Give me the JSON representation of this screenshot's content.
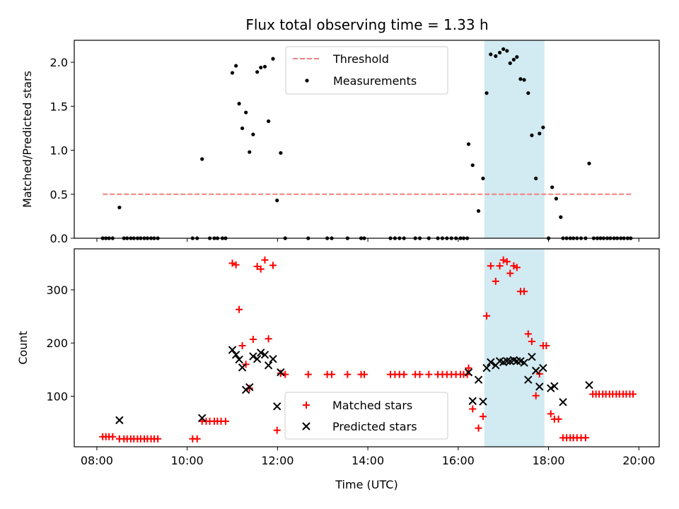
{
  "figure": {
    "title": "Flux total observing time = 1.33 h",
    "highlight_color": "#add8e6"
  },
  "chart_data": [
    {
      "type": "scatter",
      "panel": "top",
      "title": "Flux total observing time = 1.33 h",
      "xlabel": "",
      "ylabel": "Matched/Predicted stars",
      "x_unit": "hours (UTC)",
      "xlim": [
        7.5,
        20.45
      ],
      "ylim": [
        0,
        2.25
      ],
      "x_ticks": [
        8,
        10,
        12,
        14,
        16,
        18,
        20
      ],
      "y_ticks": [
        0.0,
        0.5,
        1.0,
        1.5,
        2.0
      ],
      "y_tick_labels": [
        "0.0",
        "0.5",
        "1.0",
        "1.5",
        "2.0"
      ],
      "grid": false,
      "legend_position": "upper-center",
      "highlight_span": [
        16.58,
        17.91
      ],
      "threshold": {
        "name": "Threshold",
        "value": 0.5,
        "x_range": [
          8.13,
          19.87
        ],
        "color": "#f08080",
        "style": "dashed"
      },
      "series": [
        {
          "name": "Measurements",
          "color": "#000000",
          "marker": "dot",
          "points": [
            [
              8.13,
              0
            ],
            [
              8.2,
              0
            ],
            [
              8.27,
              0
            ],
            [
              8.35,
              0
            ],
            [
              8.5,
              0.35
            ],
            [
              8.6,
              0
            ],
            [
              8.67,
              0
            ],
            [
              8.75,
              0
            ],
            [
              8.82,
              0
            ],
            [
              8.9,
              0
            ],
            [
              8.97,
              0
            ],
            [
              9.05,
              0
            ],
            [
              9.12,
              0
            ],
            [
              9.2,
              0
            ],
            [
              9.27,
              0
            ],
            [
              9.35,
              0
            ],
            [
              10.12,
              0
            ],
            [
              10.22,
              0
            ],
            [
              10.33,
              0.9
            ],
            [
              10.5,
              0
            ],
            [
              10.6,
              0
            ],
            [
              10.67,
              0
            ],
            [
              10.78,
              0
            ],
            [
              10.85,
              0
            ],
            [
              11.0,
              1.88
            ],
            [
              11.08,
              1.96
            ],
            [
              11.15,
              1.53
            ],
            [
              11.22,
              1.25
            ],
            [
              11.3,
              1.43
            ],
            [
              11.38,
              0.98
            ],
            [
              11.46,
              1.18
            ],
            [
              11.55,
              1.89
            ],
            [
              11.63,
              1.94
            ],
            [
              11.72,
              1.95
            ],
            [
              11.8,
              1.33
            ],
            [
              11.9,
              2.04
            ],
            [
              11.99,
              0.43
            ],
            [
              12.07,
              0.97
            ],
            [
              12.17,
              0
            ],
            [
              12.68,
              0
            ],
            [
              13.1,
              0
            ],
            [
              13.2,
              0
            ],
            [
              13.55,
              0
            ],
            [
              13.85,
              0
            ],
            [
              13.92,
              0
            ],
            [
              14.5,
              0
            ],
            [
              14.6,
              0
            ],
            [
              14.7,
              0
            ],
            [
              14.8,
              0
            ],
            [
              15.05,
              0
            ],
            [
              15.15,
              0
            ],
            [
              15.35,
              0
            ],
            [
              15.55,
              0
            ],
            [
              15.65,
              0
            ],
            [
              15.75,
              0
            ],
            [
              15.85,
              0
            ],
            [
              15.95,
              0
            ],
            [
              16.05,
              0
            ],
            [
              16.12,
              0
            ],
            [
              16.2,
              0
            ],
            [
              16.23,
              1.07
            ],
            [
              16.32,
              0.83
            ],
            [
              16.45,
              0.31
            ],
            [
              16.55,
              0.68
            ],
            [
              16.63,
              1.65
            ],
            [
              16.72,
              2.09
            ],
            [
              16.83,
              2.07
            ],
            [
              16.92,
              2.11
            ],
            [
              17.0,
              2.15
            ],
            [
              17.08,
              2.13
            ],
            [
              17.15,
              1.99
            ],
            [
              17.23,
              2.03
            ],
            [
              17.3,
              2.06
            ],
            [
              17.38,
              1.81
            ],
            [
              17.46,
              1.8
            ],
            [
              17.55,
              1.65
            ],
            [
              17.63,
              1.17
            ],
            [
              17.72,
              0.68
            ],
            [
              17.8,
              1.19
            ],
            [
              17.88,
              1.26
            ],
            [
              18.0,
              0
            ],
            [
              18.08,
              0.58
            ],
            [
              18.17,
              0.45
            ],
            [
              18.27,
              0.24
            ],
            [
              18.32,
              0
            ],
            [
              18.4,
              0
            ],
            [
              18.48,
              0
            ],
            [
              18.55,
              0
            ],
            [
              18.63,
              0
            ],
            [
              18.72,
              0
            ],
            [
              18.82,
              0
            ],
            [
              18.9,
              0.85
            ],
            [
              19.0,
              0
            ],
            [
              19.08,
              0
            ],
            [
              19.15,
              0
            ],
            [
              19.22,
              0
            ],
            [
              19.3,
              0
            ],
            [
              19.37,
              0
            ],
            [
              19.45,
              0
            ],
            [
              19.52,
              0
            ],
            [
              19.6,
              0
            ],
            [
              19.67,
              0
            ],
            [
              19.75,
              0
            ],
            [
              19.82,
              0
            ]
          ]
        }
      ]
    },
    {
      "type": "scatter",
      "panel": "bottom",
      "title": "",
      "xlabel": "Time (UTC)",
      "ylabel": "Count",
      "x_unit": "hours (UTC)",
      "xlim": [
        7.5,
        20.45
      ],
      "ylim": [
        5,
        377
      ],
      "x_ticks": [
        8,
        10,
        12,
        14,
        16,
        18,
        20
      ],
      "x_tick_labels": [
        "08:00",
        "10:00",
        "12:00",
        "14:00",
        "16:00",
        "18:00",
        "20:00"
      ],
      "y_ticks": [
        100,
        200,
        300
      ],
      "y_tick_labels": [
        "100",
        "200",
        "300"
      ],
      "grid": false,
      "legend_position": "lower-center",
      "highlight_span": [
        16.58,
        17.91
      ],
      "series": [
        {
          "name": "Matched stars",
          "color": "#ff0000",
          "marker": "plus",
          "points": [
            [
              8.13,
              24
            ],
            [
              8.2,
              24
            ],
            [
              8.27,
              24
            ],
            [
              8.35,
              24
            ],
            [
              8.5,
              20
            ],
            [
              8.6,
              20
            ],
            [
              8.67,
              20
            ],
            [
              8.75,
              20
            ],
            [
              8.82,
              20
            ],
            [
              8.9,
              20
            ],
            [
              8.97,
              20
            ],
            [
              9.05,
              20
            ],
            [
              9.12,
              20
            ],
            [
              9.2,
              20
            ],
            [
              9.27,
              20
            ],
            [
              9.35,
              20
            ],
            [
              10.12,
              20
            ],
            [
              10.22,
              20
            ],
            [
              10.33,
              53
            ],
            [
              10.42,
              53
            ],
            [
              10.5,
              53
            ],
            [
              10.6,
              53
            ],
            [
              10.67,
              53
            ],
            [
              10.75,
              53
            ],
            [
              10.85,
              53
            ],
            [
              11.0,
              350
            ],
            [
              11.08,
              347
            ],
            [
              11.15,
              263
            ],
            [
              11.22,
              195
            ],
            [
              11.3,
              160
            ],
            [
              11.38,
              115
            ],
            [
              11.46,
              207
            ],
            [
              11.55,
              344
            ],
            [
              11.63,
              339
            ],
            [
              11.72,
              356
            ],
            [
              11.8,
              208
            ],
            [
              11.9,
              346
            ],
            [
              11.99,
              36
            ],
            [
              12.07,
              143
            ],
            [
              12.17,
              141
            ],
            [
              12.68,
              141
            ],
            [
              13.1,
              141
            ],
            [
              13.2,
              141
            ],
            [
              13.55,
              141
            ],
            [
              13.85,
              141
            ],
            [
              13.92,
              141
            ],
            [
              14.5,
              141
            ],
            [
              14.6,
              141
            ],
            [
              14.7,
              141
            ],
            [
              14.8,
              141
            ],
            [
              15.05,
              141
            ],
            [
              15.15,
              141
            ],
            [
              15.35,
              141
            ],
            [
              15.55,
              141
            ],
            [
              15.65,
              141
            ],
            [
              15.75,
              141
            ],
            [
              15.85,
              141
            ],
            [
              15.95,
              141
            ],
            [
              16.05,
              141
            ],
            [
              16.12,
              141
            ],
            [
              16.2,
              141
            ],
            [
              16.23,
              153
            ],
            [
              16.32,
              76
            ],
            [
              16.45,
              40
            ],
            [
              16.55,
              62
            ],
            [
              16.63,
              251
            ],
            [
              16.72,
              345
            ],
            [
              16.83,
              316
            ],
            [
              16.92,
              345
            ],
            [
              17.0,
              356
            ],
            [
              17.08,
              353
            ],
            [
              17.15,
              331
            ],
            [
              17.23,
              345
            ],
            [
              17.3,
              342
            ],
            [
              17.38,
              297
            ],
            [
              17.46,
              297
            ],
            [
              17.55,
              217
            ],
            [
              17.63,
              203
            ],
            [
              17.72,
              101
            ],
            [
              17.8,
              142
            ],
            [
              17.88,
              195
            ],
            [
              17.95,
              195
            ],
            [
              18.05,
              67
            ],
            [
              18.13,
              57
            ],
            [
              18.22,
              57
            ],
            [
              18.32,
              22
            ],
            [
              18.4,
              22
            ],
            [
              18.48,
              22
            ],
            [
              18.55,
              22
            ],
            [
              18.63,
              22
            ],
            [
              18.72,
              22
            ],
            [
              18.82,
              22
            ],
            [
              18.98,
              104
            ],
            [
              19.05,
              104
            ],
            [
              19.12,
              104
            ],
            [
              19.2,
              104
            ],
            [
              19.27,
              104
            ],
            [
              19.35,
              104
            ],
            [
              19.42,
              104
            ],
            [
              19.5,
              104
            ],
            [
              19.57,
              104
            ],
            [
              19.65,
              104
            ],
            [
              19.72,
              104
            ],
            [
              19.8,
              104
            ],
            [
              19.87,
              104
            ]
          ]
        },
        {
          "name": "Predicted stars",
          "color": "#000000",
          "marker": "x",
          "points": [
            [
              8.5,
              55
            ],
            [
              10.33,
              59
            ],
            [
              11.0,
              187
            ],
            [
              11.08,
              178
            ],
            [
              11.15,
              169
            ],
            [
              11.22,
              154
            ],
            [
              11.3,
              112
            ],
            [
              11.38,
              117
            ],
            [
              11.46,
              175
            ],
            [
              11.55,
              170
            ],
            [
              11.63,
              182
            ],
            [
              11.72,
              178
            ],
            [
              11.8,
              158
            ],
            [
              11.9,
              170
            ],
            [
              11.99,
              81
            ],
            [
              12.07,
              145
            ],
            [
              16.23,
              145
            ],
            [
              16.32,
              91
            ],
            [
              16.45,
              131
            ],
            [
              16.55,
              90
            ],
            [
              16.63,
              153
            ],
            [
              16.72,
              164
            ],
            [
              16.83,
              158
            ],
            [
              16.92,
              166
            ],
            [
              17.0,
              164
            ],
            [
              17.08,
              166
            ],
            [
              17.15,
              166
            ],
            [
              17.23,
              168
            ],
            [
              17.3,
              166
            ],
            [
              17.38,
              166
            ],
            [
              17.46,
              163
            ],
            [
              17.55,
              131
            ],
            [
              17.63,
              174
            ],
            [
              17.72,
              148
            ],
            [
              17.8,
              118
            ],
            [
              17.88,
              153
            ],
            [
              18.05,
              115
            ],
            [
              18.13,
              119
            ],
            [
              18.32,
              89
            ],
            [
              18.9,
              121
            ]
          ]
        }
      ]
    }
  ]
}
